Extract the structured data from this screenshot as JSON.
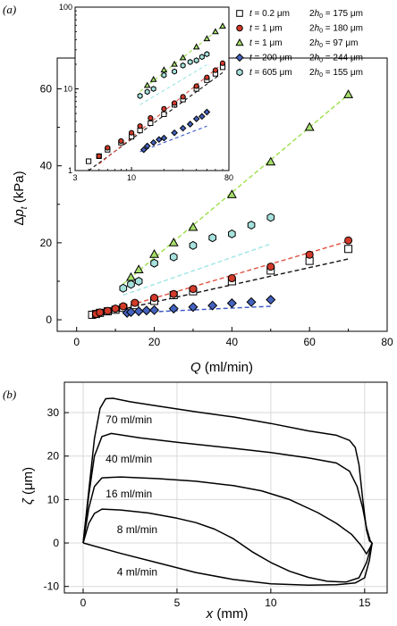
{
  "chart_data": [
    {
      "type": "scatter",
      "panel_label": "(a)",
      "xlabel": "Q (ml/min)",
      "ylabel": "Δp_t (kPa)",
      "xlim": [
        -5,
        80
      ],
      "ylim": [
        -3,
        68
      ],
      "x_ticks": [
        0,
        20,
        40,
        60,
        80
      ],
      "y_ticks": [
        0,
        20,
        40,
        60
      ],
      "grid": false,
      "legend_position": "top-right",
      "legend": [
        {
          "t": "0.2 μm",
          "h": "175 μm"
        },
        {
          "t": "1 μm",
          "h": "180 μm"
        },
        {
          "t": "1 μm",
          "h": "97 μm"
        },
        {
          "t": "200 μm",
          "h": "244 μm"
        },
        {
          "t": "605 μm",
          "h": "155 μm"
        }
      ],
      "colors": {
        "open_square": "#ffffff",
        "red": "#d23a2a",
        "green": "#a6df6b",
        "blue": "#4462be",
        "teal": "#a6e2dd",
        "line_black": "#111111",
        "line_red": "#e05040",
        "line_green": "#9be04a",
        "line_teal": "#9fe6e6",
        "line_blue": "#3b58c8"
      },
      "series": [
        {
          "marker": "square",
          "color_key": "open_square",
          "x": [
            4,
            5,
            6,
            8,
            10,
            12,
            15,
            20,
            25,
            30,
            40,
            50,
            60,
            70
          ],
          "y": [
            1.3,
            1.5,
            1.8,
            2.2,
            2.6,
            3.1,
            3.8,
            4.9,
            6.4,
            7.4,
            10.0,
            12.8,
            15.3,
            18.4
          ]
        },
        {
          "marker": "circle",
          "color_key": "red",
          "x": [
            5,
            6,
            8,
            10,
            12,
            15,
            20,
            25,
            30,
            40,
            50,
            60,
            70
          ],
          "y": [
            1.5,
            1.9,
            2.3,
            2.9,
            3.5,
            4.4,
            5.7,
            6.7,
            8.0,
            10.8,
            13.8,
            16.9,
            20.6
          ]
        },
        {
          "marker": "triangle",
          "color_key": "green",
          "x": [
            14,
            16,
            20,
            25,
            30,
            40,
            50,
            60,
            70
          ],
          "y": [
            11.0,
            13.0,
            17.0,
            20.0,
            24.0,
            32.5,
            41.0,
            50.0,
            58.5
          ]
        },
        {
          "marker": "diamond",
          "color_key": "blue",
          "x": [
            13,
            14,
            16,
            18,
            20,
            25,
            30,
            35,
            40,
            45,
            50
          ],
          "y": [
            1.8,
            2.0,
            2.2,
            2.4,
            2.5,
            2.9,
            3.3,
            3.7,
            4.3,
            4.6,
            5.2
          ]
        },
        {
          "marker": "hexagon",
          "color_key": "teal",
          "x": [
            12,
            14,
            16,
            20,
            25,
            30,
            35,
            40,
            45,
            50
          ],
          "y": [
            8.2,
            9.2,
            10.0,
            14.7,
            16.3,
            19.3,
            21.3,
            22.3,
            24.6,
            26.6
          ]
        }
      ],
      "fits": [
        {
          "color_key": "line_black",
          "x": [
            4,
            70
          ],
          "y": [
            1.0,
            15.8
          ]
        },
        {
          "color_key": "line_red",
          "x": [
            5,
            70
          ],
          "y": [
            1.2,
            20.4
          ]
        },
        {
          "color_key": "line_green",
          "x": [
            12,
            70
          ],
          "y": [
            9.3,
            58.5
          ]
        },
        {
          "color_key": "line_teal",
          "x": [
            12,
            50
          ],
          "y": [
            6.4,
            19.7
          ]
        },
        {
          "color_key": "line_blue",
          "x": [
            12,
            50
          ],
          "y": [
            1.7,
            3.5
          ]
        }
      ],
      "inset": {
        "type": "scatter",
        "scale": "log-log",
        "xlim": [
          3,
          80
        ],
        "ylim": [
          1,
          100
        ],
        "x_ticks": [
          3,
          10,
          80
        ],
        "y_ticks": [
          1,
          10,
          100
        ]
      }
    },
    {
      "type": "line",
      "panel_label": "(b)",
      "xlabel": "x (mm)",
      "ylabel": "ζ (μm)",
      "xlim": [
        -1,
        16.2
      ],
      "ylim": [
        -11.5,
        37
      ],
      "x_ticks": [
        0,
        5,
        10,
        15
      ],
      "y_ticks": [
        -10,
        0,
        10,
        20,
        30
      ],
      "grid": true,
      "series": [
        {
          "name": "70 ml/min",
          "x": [
            0,
            0.3,
            0.6,
            0.9,
            1.2,
            1.6,
            2.5,
            4,
            6,
            8,
            10,
            12,
            13.5,
            14.2,
            14.5,
            14.7,
            14.9,
            15.1,
            15.25,
            15.4
          ],
          "y": [
            0,
            12,
            24,
            31,
            33.2,
            33.3,
            32.5,
            31.5,
            30.2,
            29,
            27.5,
            25.8,
            24.8,
            23.6,
            22,
            18,
            10,
            3,
            0.5,
            0
          ]
        },
        {
          "name": "40 ml/min",
          "x": [
            0,
            0.3,
            0.6,
            1,
            1.5,
            3,
            5,
            8,
            10,
            12,
            13.5,
            14.2,
            14.6,
            14.9,
            15.1,
            15.3,
            15.4
          ],
          "y": [
            0,
            11,
            20,
            24.5,
            25.2,
            24.2,
            23.2,
            21.8,
            20.8,
            19.6,
            18.4,
            16.5,
            13,
            8,
            3.5,
            0.5,
            0
          ]
        },
        {
          "name": "16 ml/min",
          "x": [
            0,
            0.3,
            0.6,
            1,
            2,
            4,
            6,
            8,
            9.5,
            11,
            12.5,
            13.5,
            14.3,
            14.8,
            15.1,
            15.3,
            15.4
          ],
          "y": [
            0,
            8,
            13,
            15,
            15.2,
            14.8,
            14.2,
            13.2,
            12,
            10,
            7,
            4.5,
            2,
            -0.5,
            -2.5,
            -1,
            0
          ]
        },
        {
          "name": "8 ml/min",
          "x": [
            0,
            0.3,
            0.6,
            1,
            2,
            3.5,
            5,
            6,
            7,
            8,
            9,
            10,
            11,
            12,
            13,
            14,
            14.7,
            15.1,
            15.4
          ],
          "y": [
            0,
            4.5,
            6.8,
            7.8,
            7.6,
            6.9,
            5.7,
            4.7,
            3.2,
            1,
            -2,
            -4.5,
            -6.5,
            -7.9,
            -8.8,
            -9.0,
            -8.0,
            -4.5,
            0
          ]
        },
        {
          "name": "4 ml/min",
          "x": [
            0,
            2,
            4,
            6,
            8,
            10,
            12,
            13.5,
            14.5,
            15,
            15.25,
            15.4
          ],
          "y": [
            0,
            -2.4,
            -4.6,
            -6.8,
            -8.4,
            -9.4,
            -9.7,
            -9.6,
            -9.2,
            -8,
            -4,
            0
          ]
        }
      ]
    }
  ]
}
